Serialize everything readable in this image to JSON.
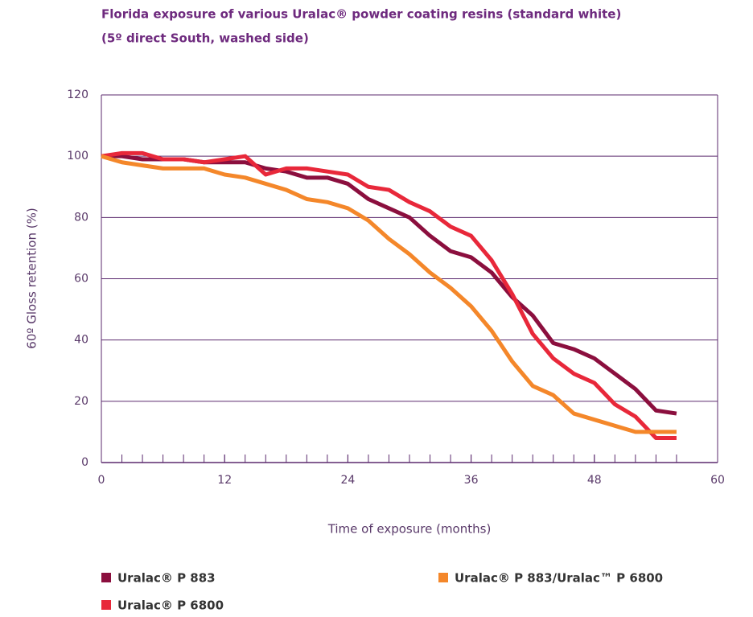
{
  "chart_data": {
    "type": "line",
    "title": "Florida exposure of various Uralac® powder coating resins (standard white)",
    "subtitle": "(5º direct South, washed side)",
    "x_label": "Time of exposure (months)",
    "y_label": "60º Gloss retention (%)",
    "x": [
      0,
      2,
      4,
      6,
      8,
      10,
      12,
      14,
      16,
      18,
      20,
      22,
      24,
      26,
      28,
      30,
      32,
      34,
      36,
      38,
      40,
      42,
      44,
      46,
      48,
      50,
      52,
      54,
      56
    ],
    "series": [
      {
        "name": "Uralac® P 883",
        "color": "#8b0f3e",
        "values": [
          100,
          100,
          99,
          99,
          99,
          98,
          98,
          98,
          96,
          95,
          93,
          93,
          91,
          86,
          83,
          80,
          74,
          69,
          67,
          62,
          54,
          48,
          39,
          37,
          34,
          29,
          24,
          17,
          16
        ]
      },
      {
        "name": "Uralac® P 6800",
        "color": "#e8283a",
        "values": [
          100,
          101,
          101,
          99,
          99,
          98,
          99,
          100,
          94,
          96,
          96,
          95,
          94,
          90,
          89,
          85,
          82,
          77,
          74,
          66,
          55,
          42,
          34,
          29,
          26,
          19,
          15,
          8,
          8
        ]
      },
      {
        "name": "Uralac® P 883/Uralac™ P 6800",
        "color": "#f4872a",
        "values": [
          100,
          98,
          97,
          96,
          96,
          96,
          94,
          93,
          91,
          89,
          86,
          85,
          83,
          79,
          73,
          68,
          62,
          57,
          51,
          43,
          33,
          25,
          22,
          16,
          14,
          12,
          10,
          10,
          10
        ]
      }
    ],
    "xlim": [
      0,
      60
    ],
    "xticks": [
      0,
      12,
      24,
      36,
      48,
      60
    ],
    "ylim": [
      0,
      120
    ],
    "yticks": [
      0,
      20,
      40,
      60,
      80,
      100,
      120
    ],
    "grid": true
  }
}
